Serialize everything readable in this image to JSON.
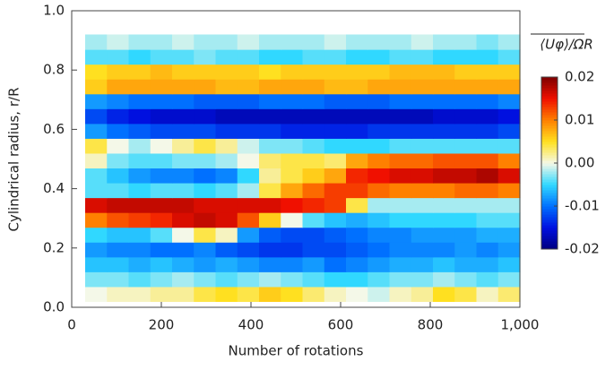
{
  "chart_data": {
    "type": "heatmap",
    "xlabel": "Number of rotations",
    "ylabel": "Cylindrical radius, r/R",
    "colorbar_label": "⟨Uφ⟩/ΩR",
    "xlim": [
      0,
      1000
    ],
    "xticks": [
      0,
      200,
      400,
      600,
      800,
      {
        "value": 1000,
        "label": "1,000"
      }
    ],
    "ylim": [
      0,
      1
    ],
    "yticks": [
      {
        "value": 0,
        "label": "0.0"
      },
      0.2,
      0.4,
      0.6,
      0.8,
      {
        "value": 1,
        "label": "1.0"
      }
    ],
    "clim": [
      -0.02,
      0.02
    ],
    "cticks": [
      -0.02,
      -0.01,
      {
        "value": 0,
        "label": "0.00"
      },
      0.01,
      0.02
    ],
    "colormap": [
      "#00007f",
      "#0010e0",
      "#0070ff",
      "#30d8ff",
      "#f4f8e8",
      "#ffe020",
      "#ff8000",
      "#f01000",
      "#7f0000"
    ],
    "xbins": [
      30,
      78.5,
      127,
      175.5,
      224,
      272.5,
      321,
      369.5,
      418,
      466.5,
      515,
      563.5,
      612,
      660.5,
      709,
      757.5,
      806,
      854.5,
      903,
      951.5,
      1000
    ],
    "ybins": [
      0.02,
      0.07,
      0.12,
      0.17,
      0.22,
      0.27,
      0.32,
      0.37,
      0.42,
      0.47,
      0.52,
      0.57,
      0.62,
      0.67,
      0.72,
      0.77,
      0.82,
      0.87,
      0.92
    ],
    "z": [
      [
        0,
        0.001,
        0.001,
        0.002,
        0.002,
        0.004,
        0.005,
        0.004,
        0.006,
        0.005,
        0.003,
        0.001,
        0,
        -0.001,
        0.001,
        0.002,
        0.005,
        0.004,
        0.001,
        0.003
      ],
      [
        -0.003,
        -0.003,
        -0.004,
        -0.003,
        -0.002,
        -0.003,
        -0.004,
        -0.003,
        -0.002,
        -0.003,
        -0.004,
        -0.005,
        -0.005,
        -0.004,
        -0.003,
        -0.003,
        -0.002,
        -0.003,
        -0.004,
        -0.003
      ],
      [
        -0.006,
        -0.006,
        -0.007,
        -0.006,
        -0.007,
        -0.008,
        -0.007,
        -0.008,
        -0.009,
        -0.009,
        -0.008,
        -0.01,
        -0.009,
        -0.008,
        -0.007,
        -0.007,
        -0.006,
        -0.007,
        -0.007,
        -0.006
      ],
      [
        -0.008,
        -0.009,
        -0.009,
        -0.01,
        -0.01,
        -0.009,
        -0.011,
        -0.012,
        -0.013,
        -0.013,
        -0.012,
        -0.012,
        -0.011,
        -0.01,
        -0.009,
        -0.009,
        -0.009,
        -0.008,
        -0.009,
        -0.008
      ],
      [
        -0.005,
        -0.006,
        -0.006,
        -0.004,
        0,
        0.004,
        0.001,
        -0.008,
        -0.011,
        -0.012,
        -0.012,
        -0.011,
        -0.01,
        -0.009,
        -0.009,
        -0.008,
        -0.008,
        -0.008,
        -0.007,
        -0.007
      ],
      [
        0.01,
        0.012,
        0.013,
        0.014,
        0.016,
        0.017,
        0.016,
        0.012,
        0.006,
        0,
        -0.004,
        -0.006,
        -0.007,
        -0.006,
        -0.005,
        -0.005,
        -0.005,
        -0.005,
        -0.004,
        -0.004
      ],
      [
        0.016,
        0.017,
        0.017,
        0.017,
        0.017,
        0.016,
        0.016,
        0.016,
        0.016,
        0.015,
        0.014,
        0.013,
        0.004,
        -0.002,
        -0.002,
        -0.002,
        -0.002,
        -0.002,
        -0.002,
        -0.002
      ],
      [
        -0.004,
        -0.004,
        -0.005,
        -0.004,
        -0.004,
        -0.005,
        -0.004,
        -0.002,
        0.004,
        0.008,
        0.011,
        0.013,
        0.013,
        0.011,
        0.01,
        0.01,
        0.01,
        0.011,
        0.011,
        0.01
      ],
      [
        -0.004,
        -0.006,
        -0.008,
        -0.009,
        -0.009,
        -0.01,
        -0.009,
        -0.005,
        0.002,
        0.004,
        0.006,
        0.008,
        0.014,
        0.015,
        0.016,
        0.016,
        0.017,
        0.017,
        0.018,
        0.016
      ],
      [
        0.001,
        -0.003,
        -0.004,
        -0.004,
        -0.003,
        -0.003,
        -0.002,
        0,
        0.003,
        0.004,
        0.004,
        0.003,
        0.008,
        0.01,
        0.011,
        0.011,
        0.012,
        0.012,
        0.012,
        0.01
      ],
      [
        0.004,
        0,
        -0.002,
        0,
        0.002,
        0.004,
        0.002,
        -0.001,
        -0.003,
        -0.003,
        -0.004,
        -0.005,
        -0.005,
        -0.005,
        -0.004,
        -0.004,
        -0.004,
        -0.004,
        -0.004,
        -0.004
      ],
      [
        -0.008,
        -0.01,
        -0.011,
        -0.012,
        -0.012,
        -0.012,
        -0.013,
        -0.013,
        -0.013,
        -0.014,
        -0.014,
        -0.014,
        -0.014,
        -0.013,
        -0.013,
        -0.013,
        -0.013,
        -0.013,
        -0.013,
        -0.012
      ],
      [
        -0.012,
        -0.014,
        -0.015,
        -0.016,
        -0.016,
        -0.016,
        -0.017,
        -0.017,
        -0.017,
        -0.017,
        -0.017,
        -0.017,
        -0.017,
        -0.017,
        -0.017,
        -0.017,
        -0.016,
        -0.016,
        -0.016,
        -0.015
      ],
      [
        -0.008,
        -0.009,
        -0.01,
        -0.01,
        -0.01,
        -0.011,
        -0.011,
        -0.011,
        -0.01,
        -0.01,
        -0.01,
        -0.011,
        -0.011,
        -0.011,
        -0.01,
        -0.01,
        -0.01,
        -0.01,
        -0.01,
        -0.009
      ],
      [
        0.006,
        0.008,
        0.008,
        0.008,
        0.008,
        0.008,
        0.007,
        0.007,
        0.008,
        0.008,
        0.008,
        0.007,
        0.007,
        0.008,
        0.008,
        0.008,
        0.008,
        0.008,
        0.008,
        0.008
      ],
      [
        0.005,
        0.006,
        0.006,
        0.007,
        0.006,
        0.006,
        0.006,
        0.006,
        0.005,
        0.006,
        0.006,
        0.006,
        0.006,
        0.006,
        0.007,
        0.007,
        0.007,
        0.006,
        0.006,
        0.006
      ],
      [
        -0.004,
        -0.004,
        -0.005,
        -0.004,
        -0.004,
        -0.003,
        -0.004,
        -0.004,
        -0.005,
        -0.005,
        -0.004,
        -0.004,
        -0.005,
        -0.005,
        -0.004,
        -0.004,
        -0.005,
        -0.005,
        -0.005,
        -0.004
      ],
      [
        -0.002,
        -0.001,
        -0.002,
        -0.002,
        -0.001,
        -0.002,
        -0.002,
        -0.001,
        -0.002,
        -0.002,
        -0.002,
        -0.001,
        -0.002,
        -0.002,
        -0.002,
        -0.001,
        -0.002,
        -0.002,
        -0.003,
        -0.002
      ]
    ]
  }
}
